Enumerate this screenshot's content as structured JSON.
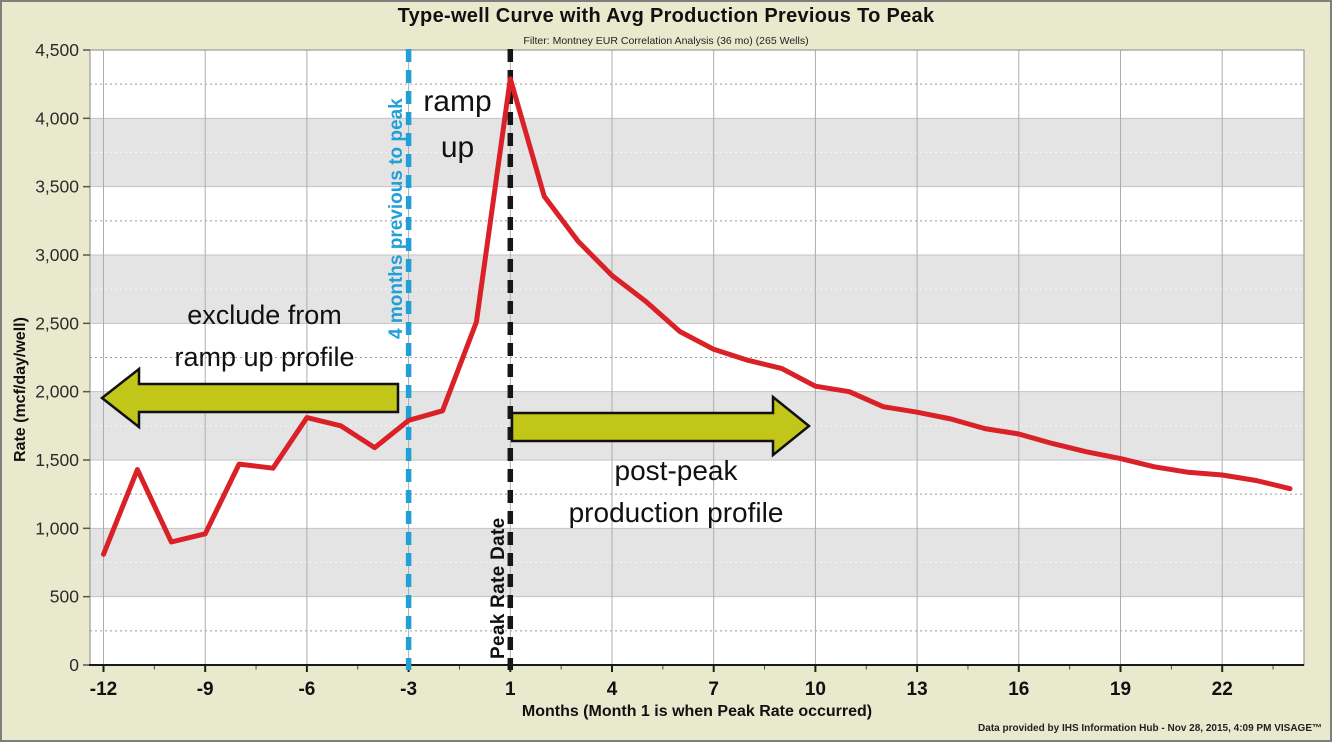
{
  "title": "Type-well Curve with Avg Production Previous To Peak",
  "subtitle": "Filter: Montney EUR Correlation Analysis (36 mo) (265 Wells)",
  "footer": {
    "attribution": "Data provided by IHS Information Hub - Nov 28, 2015, 4:09 PM  VISAGE™"
  },
  "chart_data": {
    "type": "line",
    "title": "Type-well Curve with Avg Production Previous To Peak",
    "subtitle": "Filter: Montney EUR Correlation Analysis (36 mo) (265 Wells)",
    "xlabel": "Months (Month 1 is when Peak Rate occurred)",
    "ylabel": "Rate (mcf/day/well)",
    "ylim": [
      0,
      4500
    ],
    "y_tick_interval": 500,
    "y_tick_labels": [
      "0",
      "500",
      "1,000",
      "1,500",
      "2,000",
      "2,500",
      "3,000",
      "3,500",
      "4,000",
      "4,500"
    ],
    "x_major_ticks": [
      -12,
      -9,
      -6,
      -3,
      1,
      4,
      7,
      10,
      13,
      16,
      19,
      22
    ],
    "x_axis_note": "month axis skips zero: months run -12..-1 then 1..24",
    "grid": {
      "horizontal_bands": "alternating white and gray every 500 units",
      "minor_dotted_lines_every": 250,
      "vertical_gridlines_at_major_ticks": true
    },
    "line_color": "#da2128",
    "x": [
      -12,
      -11,
      -10,
      -9,
      -8,
      -7,
      -6,
      -5,
      -4,
      -3,
      -2,
      -1,
      1,
      2,
      3,
      4,
      5,
      6,
      7,
      8,
      9,
      10,
      11,
      12,
      13,
      14,
      15,
      16,
      17,
      18,
      19,
      20,
      21,
      22,
      23,
      24
    ],
    "y": [
      810,
      1430,
      900,
      960,
      1470,
      1440,
      1810,
      1750,
      1590,
      1790,
      1860,
      2510,
      4290,
      3430,
      3100,
      2850,
      2660,
      2440,
      2310,
      2230,
      2170,
      2040,
      2000,
      1890,
      1850,
      1800,
      1730,
      1690,
      1620,
      1560,
      1510,
      1450,
      1410,
      1390,
      1350,
      1290
    ],
    "reference_lines": [
      {
        "month": -3,
        "label": "4 months previous to peak",
        "style": "dashed",
        "color": "#239fd8"
      },
      {
        "month": 1,
        "label": "Peak Rate Date",
        "style": "dashed",
        "color": "#161616"
      }
    ]
  },
  "annotations": {
    "ramp_up": {
      "line1": "ramp",
      "line2": "up"
    },
    "exclude": {
      "line1": "exclude from",
      "line2": "ramp up profile"
    },
    "post_peak": {
      "line1": "post-peak",
      "line2": "production profile"
    },
    "arrow_color": "#c2c618"
  },
  "colors": {
    "background": "#e9eacd",
    "plot_band_gray": "#e4e4e4",
    "plot_band_white": "#ffffff",
    "series_red": "#da2128",
    "ref_blue": "#239fd8",
    "arrow_fill": "#c2c618"
  }
}
